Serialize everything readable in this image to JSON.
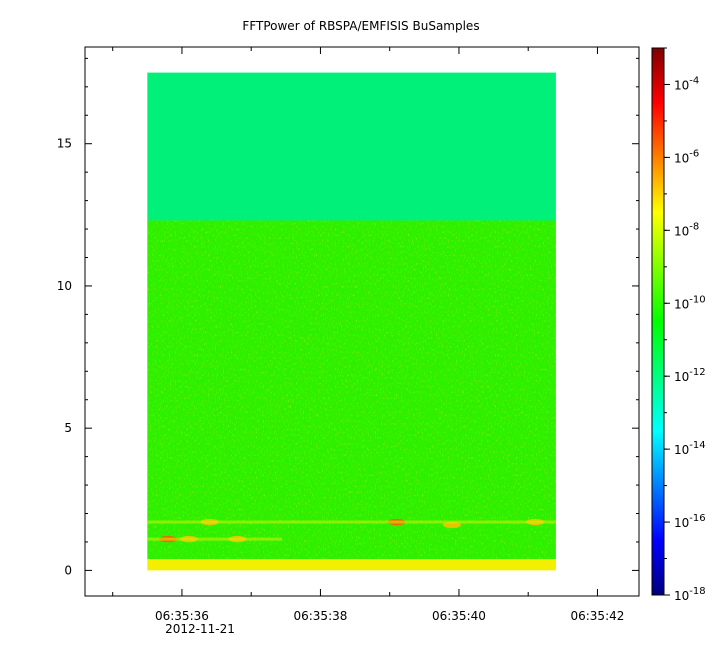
{
  "chart_data": {
    "type": "heatmap",
    "title": "FFTPower of RBSPA/EMFISIS  BuSamples",
    "xlabel": "",
    "ylabel": "",
    "x_ticks": [
      "06:35:36",
      "06:35:38",
      "06:35:40",
      "06:35:42"
    ],
    "x_date_label": "2012-11-21",
    "x_range_seconds": [
      "06:35:34.6",
      "06:35:42.6"
    ],
    "data_time_range": [
      "06:35:35.5",
      "06:35:41.4"
    ],
    "y_ticks": [
      0,
      5,
      10,
      15
    ],
    "ylim": [
      -0.9,
      18.4
    ],
    "data_y_range": [
      0,
      17.5
    ],
    "colorbar": {
      "scale": "log",
      "range": [
        1e-18,
        0.001
      ],
      "tick_labels": [
        {
          "base": "10",
          "exp": "-4",
          "value": 0.0001
        },
        {
          "base": "10",
          "exp": "-6",
          "value": 1e-06
        },
        {
          "base": "10",
          "exp": "-8",
          "value": 1e-08
        },
        {
          "base": "10",
          "exp": "-10",
          "value": 1e-10
        },
        {
          "base": "10",
          "exp": "-12",
          "value": 1e-12
        },
        {
          "base": "10",
          "exp": "-14",
          "value": 1e-14
        },
        {
          "base": "10",
          "exp": "-16",
          "value": 1e-16
        },
        {
          "base": "10",
          "exp": "-18",
          "value": 1e-18
        }
      ],
      "colormap": [
        "#00007f",
        "#0000ff",
        "#007fff",
        "#00ffff",
        "#00ff7f",
        "#00ff00",
        "#7fff00",
        "#ffff00",
        "#ff7f00",
        "#ff0000",
        "#7f0000"
      ]
    },
    "bands": [
      {
        "y_from": 12.3,
        "y_to": 17.5,
        "level": 2e-12,
        "color": "#00f07a"
      },
      {
        "y_from": 0.4,
        "y_to": 12.3,
        "level": 1e-10,
        "color": "#2cf000"
      },
      {
        "y_from": 0.0,
        "y_to": 0.4,
        "level": 1e-08,
        "color": "#f2ef00"
      }
    ],
    "features": [
      {
        "time": "06:35:35.8",
        "y": 1.1,
        "level": 1e-06
      },
      {
        "time": "06:35:36.1",
        "y": 1.1,
        "level": 1e-07
      },
      {
        "time": "06:35:36.8",
        "y": 1.1,
        "level": 1e-07
      },
      {
        "time": "06:35:36.4",
        "y": 1.7,
        "level": 1e-07
      },
      {
        "time": "06:35:39.1",
        "y": 1.7,
        "level": 1e-06
      },
      {
        "time": "06:35:39.9",
        "y": 1.6,
        "level": 1e-07
      },
      {
        "time": "06:35:41.1",
        "y": 1.7,
        "level": 1e-07
      }
    ]
  }
}
